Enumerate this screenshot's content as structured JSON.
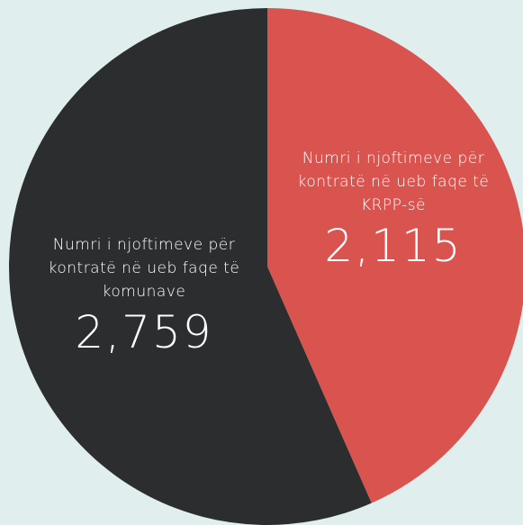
{
  "chart_data": {
    "type": "pie",
    "categories": [
      "Numri i njoftimeve për kontratë në ueb faqe të KRPP-së",
      "Numri i njoftimeve për kontratë në ueb faqe të komunave"
    ],
    "values": [
      2115,
      2759
    ],
    "value_labels": [
      "2,115",
      "2,759"
    ],
    "colors": [
      "#d9534f",
      "#2b2d2f"
    ]
  }
}
